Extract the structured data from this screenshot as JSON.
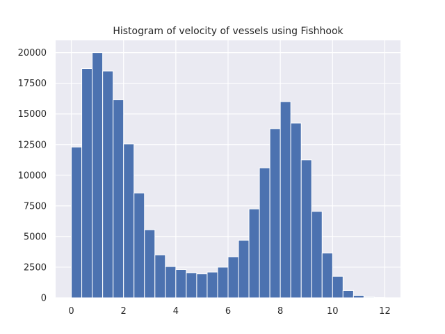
{
  "chart_data": {
    "type": "bar",
    "title": "Histogram of velocity of vessels using Fishhook",
    "xlabel": "",
    "ylabel": "",
    "xlim": [
      -0.6,
      12.6
    ],
    "ylim": [
      0,
      21000
    ],
    "xticks": [
      0,
      2,
      4,
      6,
      8,
      10,
      12
    ],
    "yticks": [
      0,
      2500,
      5000,
      7500,
      10000,
      12500,
      15000,
      17500,
      20000
    ],
    "grid": true,
    "bin_width": 0.4,
    "bin_starts": [
      0.0,
      0.4,
      0.8,
      1.2,
      1.6,
      2.0,
      2.4,
      2.8,
      3.2,
      3.6,
      4.0,
      4.4,
      4.8,
      5.2,
      5.6,
      6.0,
      6.4,
      6.8,
      7.2,
      7.6,
      8.0,
      8.4,
      8.8,
      9.2,
      9.6,
      10.0,
      10.4,
      10.8,
      11.2,
      11.6
    ],
    "values": [
      12300,
      18700,
      20000,
      18500,
      16150,
      12550,
      8550,
      5550,
      3500,
      2550,
      2300,
      2050,
      1950,
      2100,
      2500,
      3350,
      4700,
      7250,
      10600,
      13800,
      16000,
      14250,
      11250,
      7050,
      3650,
      1750,
      600,
      200,
      60,
      20
    ],
    "colors": {
      "bar": "#4c72b0",
      "background": "#eaeaf2",
      "grid": "#ffffff"
    }
  }
}
